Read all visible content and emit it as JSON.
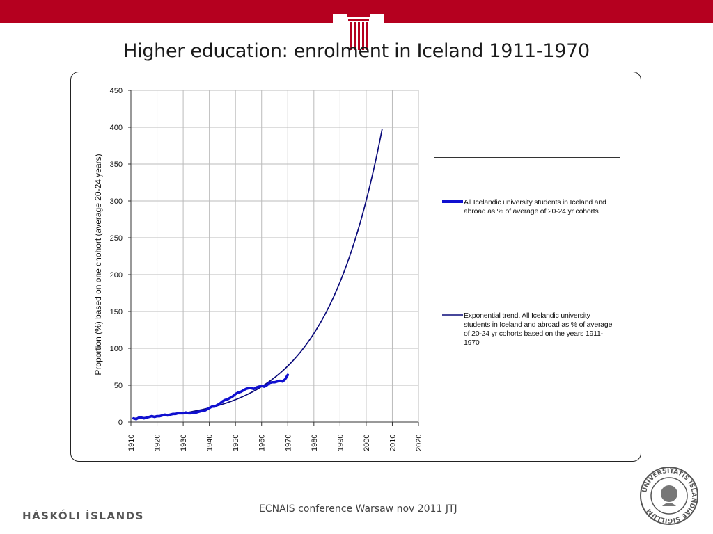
{
  "slide": {
    "title": "Higher education: enrolment in Iceland 1911-1970",
    "footer_left": "HÁSKÓLI ÍSLANDS",
    "footer_center": "ECNAIS conference Warsaw nov 2011 JTJ",
    "seal_text": "UNIVERSITATIS ISLANDIAE SIGILLUM"
  },
  "colors": {
    "brand_red": "#b5001f",
    "series_blue": "#1010d0",
    "trend_navy": "#0a0a7a",
    "grid": "#bbbbbb"
  },
  "chart_data": {
    "type": "line",
    "title": "",
    "xlabel": "",
    "ylabel": "Proportion (%) based on one chohort (average  20-24  years)",
    "xlim": [
      1910,
      2020
    ],
    "ylim": [
      0,
      450
    ],
    "x_ticks": [
      "1910",
      "1920",
      "1930",
      "1940",
      "1950",
      "1960",
      "1970",
      "1980",
      "1990",
      "2000",
      "2010",
      "2020"
    ],
    "y_ticks": [
      "0",
      "50",
      "100",
      "150",
      "200",
      "250",
      "300",
      "350",
      "400",
      "450"
    ],
    "grid": true,
    "legend_position": "right",
    "series": [
      {
        "name": "All Icelandic university students in Iceland and abroad as % of average of 20-24 yr cohorts",
        "style": "thick",
        "x": [
          1911,
          1912,
          1913,
          1914,
          1915,
          1916,
          1917,
          1918,
          1919,
          1920,
          1921,
          1922,
          1923,
          1924,
          1925,
          1926,
          1927,
          1928,
          1929,
          1930,
          1931,
          1932,
          1933,
          1934,
          1935,
          1936,
          1937,
          1938,
          1939,
          1940,
          1941,
          1942,
          1943,
          1944,
          1945,
          1946,
          1947,
          1948,
          1949,
          1950,
          1951,
          1952,
          1953,
          1954,
          1955,
          1956,
          1957,
          1958,
          1959,
          1960,
          1961,
          1962,
          1963,
          1964,
          1965,
          1966,
          1967,
          1968,
          1969,
          1970
        ],
        "y": [
          5,
          4,
          6,
          6,
          5,
          6,
          7,
          8,
          7,
          8,
          8,
          9,
          10,
          9,
          10,
          11,
          11,
          12,
          12,
          12,
          13,
          12,
          12,
          13,
          13,
          14,
          15,
          15,
          17,
          19,
          21,
          21,
          23,
          25,
          28,
          30,
          31,
          33,
          35,
          38,
          40,
          41,
          43,
          45,
          46,
          46,
          45,
          47,
          48,
          49,
          48,
          50,
          53,
          54,
          54,
          55,
          56,
          55,
          58,
          64
        ]
      },
      {
        "name": "Exponential trend. All Icelandic university students in Iceland and abroad as % of average of 20-24 yr cohorts based on the years 1911-1970",
        "style": "thin",
        "type": "exponential",
        "a": 5.1,
        "b": 0.0458,
        "x0": 1911,
        "x_start": 1911,
        "x_end": 2006.1
      }
    ]
  }
}
